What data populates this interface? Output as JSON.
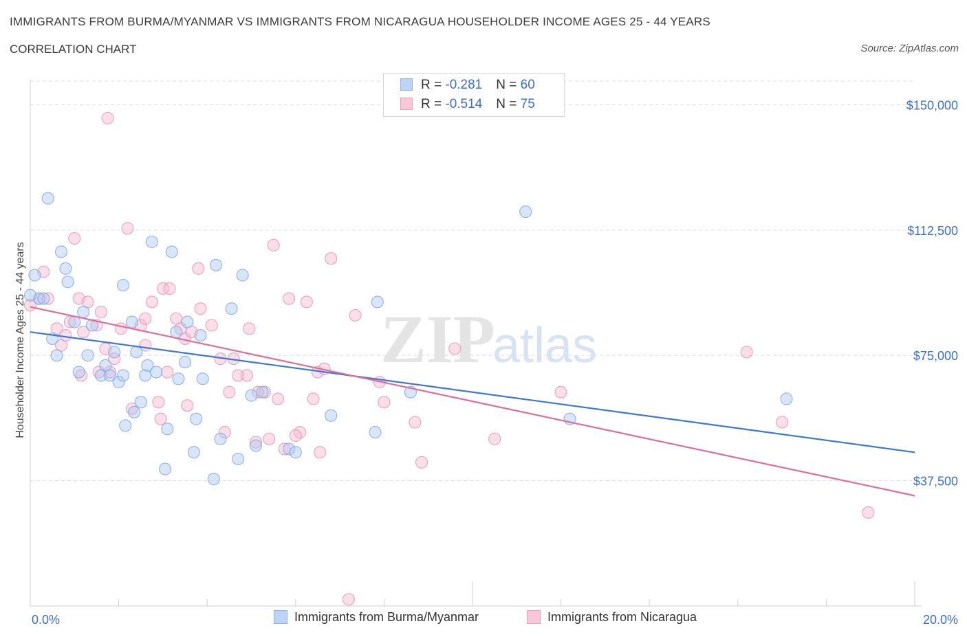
{
  "title": "IMMIGRANTS FROM BURMA/MYANMAR VS IMMIGRANTS FROM NICARAGUA HOUSEHOLDER INCOME AGES 25 - 44 YEARS",
  "subtitle": "CORRELATION CHART",
  "source": "Source: ZipAtlas.com",
  "watermark": {
    "zip": "ZIP",
    "atlas": "atlas"
  },
  "colors": {
    "blue": "#3a78d4",
    "blue_fill": "#aac8f2",
    "pink": "#e06d98",
    "pink_fill": "#f5b8cc",
    "tick_label": "#3a6fd1",
    "grid": "#dddddd"
  },
  "legend": {
    "rows": [
      {
        "r_label": "R = ",
        "r_value": "-0.281",
        "n_label": "N = ",
        "n_value": "60"
      },
      {
        "r_label": "R = ",
        "r_value": "-0.514",
        "n_label": "N = ",
        "n_value": "75"
      }
    ]
  },
  "bottom_legend": [
    "Immigrants from Burma/Myanmar",
    "Immigrants from Nicaragua"
  ],
  "chart_data": {
    "type": "scatter",
    "xlabel": "",
    "ylabel": "Householder Income Ages 25 - 44 years",
    "xlim": [
      0,
      20
    ],
    "ylim": [
      0,
      157500
    ],
    "x_tick_labels": [
      "0.0%",
      "20.0%"
    ],
    "y_ticks": [
      37500,
      75000,
      112500,
      150000
    ],
    "y_tick_labels": [
      "$37,500",
      "$75,000",
      "$112,500",
      "$150,000"
    ],
    "grid": true,
    "series": [
      {
        "name": "Immigrants from Burma/Myanmar",
        "color": "#3a78d4",
        "trend": {
          "x": [
            0,
            20
          ],
          "y": [
            82000,
            46000
          ]
        },
        "points": [
          [
            0.1,
            99000
          ],
          [
            0.2,
            92000
          ],
          [
            0.4,
            122000
          ],
          [
            0.5,
            80000
          ],
          [
            0.6,
            75000
          ],
          [
            0.7,
            106000
          ],
          [
            0.8,
            101000
          ],
          [
            0.85,
            97000
          ],
          [
            1.0,
            85000
          ],
          [
            1.1,
            70000
          ],
          [
            1.2,
            88000
          ],
          [
            1.3,
            75000
          ],
          [
            1.4,
            84000
          ],
          [
            1.6,
            69000
          ],
          [
            1.7,
            72000
          ],
          [
            1.8,
            69000
          ],
          [
            1.9,
            76000
          ],
          [
            2.0,
            67000
          ],
          [
            2.1,
            69000
          ],
          [
            2.1,
            96000
          ],
          [
            2.15,
            54000
          ],
          [
            2.3,
            85000
          ],
          [
            2.35,
            58000
          ],
          [
            2.4,
            76000
          ],
          [
            2.5,
            61000
          ],
          [
            2.6,
            69000
          ],
          [
            2.65,
            72000
          ],
          [
            2.75,
            109000
          ],
          [
            2.85,
            70000
          ],
          [
            3.05,
            41000
          ],
          [
            3.1,
            53000
          ],
          [
            3.2,
            106000
          ],
          [
            3.3,
            82000
          ],
          [
            3.35,
            68000
          ],
          [
            3.5,
            73000
          ],
          [
            3.55,
            85000
          ],
          [
            3.7,
            46000
          ],
          [
            3.75,
            56000
          ],
          [
            3.85,
            81000
          ],
          [
            3.9,
            68000
          ],
          [
            4.15,
            38000
          ],
          [
            4.2,
            102000
          ],
          [
            4.3,
            50000
          ],
          [
            4.55,
            89000
          ],
          [
            4.7,
            44000
          ],
          [
            4.8,
            99000
          ],
          [
            5.0,
            63000
          ],
          [
            5.1,
            48000
          ],
          [
            5.25,
            64000
          ],
          [
            5.85,
            47000
          ],
          [
            6.0,
            46000
          ],
          [
            6.8,
            57000
          ],
          [
            7.8,
            52000
          ],
          [
            7.85,
            91000
          ],
          [
            8.6,
            64000
          ],
          [
            11.2,
            118000
          ],
          [
            12.2,
            56000
          ],
          [
            17.1,
            62000
          ],
          [
            0.0,
            93000
          ],
          [
            0.3,
            92000
          ]
        ]
      },
      {
        "name": "Immigrants from Nicaragua",
        "color": "#e06d98",
        "trend": {
          "x": [
            0,
            20
          ],
          "y": [
            89500,
            33000
          ]
        },
        "points": [
          [
            0.0,
            90000
          ],
          [
            0.2,
            92000
          ],
          [
            0.3,
            100000
          ],
          [
            0.4,
            92000
          ],
          [
            0.6,
            83000
          ],
          [
            0.7,
            78000
          ],
          [
            0.8,
            81000
          ],
          [
            0.9,
            85000
          ],
          [
            1.0,
            110000
          ],
          [
            1.1,
            92000
          ],
          [
            1.2,
            82000
          ],
          [
            1.3,
            91000
          ],
          [
            1.5,
            84000
          ],
          [
            1.6,
            88000
          ],
          [
            1.7,
            77000
          ],
          [
            1.75,
            146000
          ],
          [
            1.8,
            70000
          ],
          [
            1.9,
            74000
          ],
          [
            2.05,
            83000
          ],
          [
            2.2,
            113000
          ],
          [
            2.3,
            59000
          ],
          [
            2.5,
            84000
          ],
          [
            2.6,
            86000
          ],
          [
            2.6,
            78000
          ],
          [
            2.75,
            91000
          ],
          [
            2.9,
            61000
          ],
          [
            3.0,
            95000
          ],
          [
            3.1,
            70000
          ],
          [
            3.15,
            95000
          ],
          [
            3.3,
            86000
          ],
          [
            3.4,
            83000
          ],
          [
            3.5,
            80000
          ],
          [
            3.55,
            60000
          ],
          [
            3.65,
            82000
          ],
          [
            3.8,
            101000
          ],
          [
            3.85,
            89000
          ],
          [
            4.1,
            84000
          ],
          [
            4.3,
            74000
          ],
          [
            4.4,
            52000
          ],
          [
            4.5,
            64000
          ],
          [
            4.7,
            69000
          ],
          [
            4.9,
            69000
          ],
          [
            4.95,
            83000
          ],
          [
            5.1,
            49000
          ],
          [
            5.15,
            64000
          ],
          [
            5.3,
            64000
          ],
          [
            5.4,
            50000
          ],
          [
            5.5,
            108000
          ],
          [
            5.6,
            62000
          ],
          [
            5.75,
            47000
          ],
          [
            5.85,
            92000
          ],
          [
            6.1,
            52000
          ],
          [
            6.25,
            91000
          ],
          [
            6.4,
            62000
          ],
          [
            6.5,
            70000
          ],
          [
            6.55,
            46000
          ],
          [
            6.65,
            71000
          ],
          [
            6.8,
            104000
          ],
          [
            7.2,
            2000
          ],
          [
            7.35,
            87000
          ],
          [
            7.9,
            67000
          ],
          [
            8.0,
            61000
          ],
          [
            8.7,
            55000
          ],
          [
            8.85,
            43000
          ],
          [
            9.6,
            77000
          ],
          [
            10.5,
            50000
          ],
          [
            12.0,
            64000
          ],
          [
            16.2,
            76000
          ],
          [
            17.0,
            55000
          ],
          [
            18.95,
            28000
          ],
          [
            1.15,
            69000
          ],
          [
            2.95,
            56000
          ],
          [
            4.6,
            74000
          ],
          [
            6.0,
            51000
          ],
          [
            1.55,
            70000
          ]
        ]
      }
    ]
  }
}
